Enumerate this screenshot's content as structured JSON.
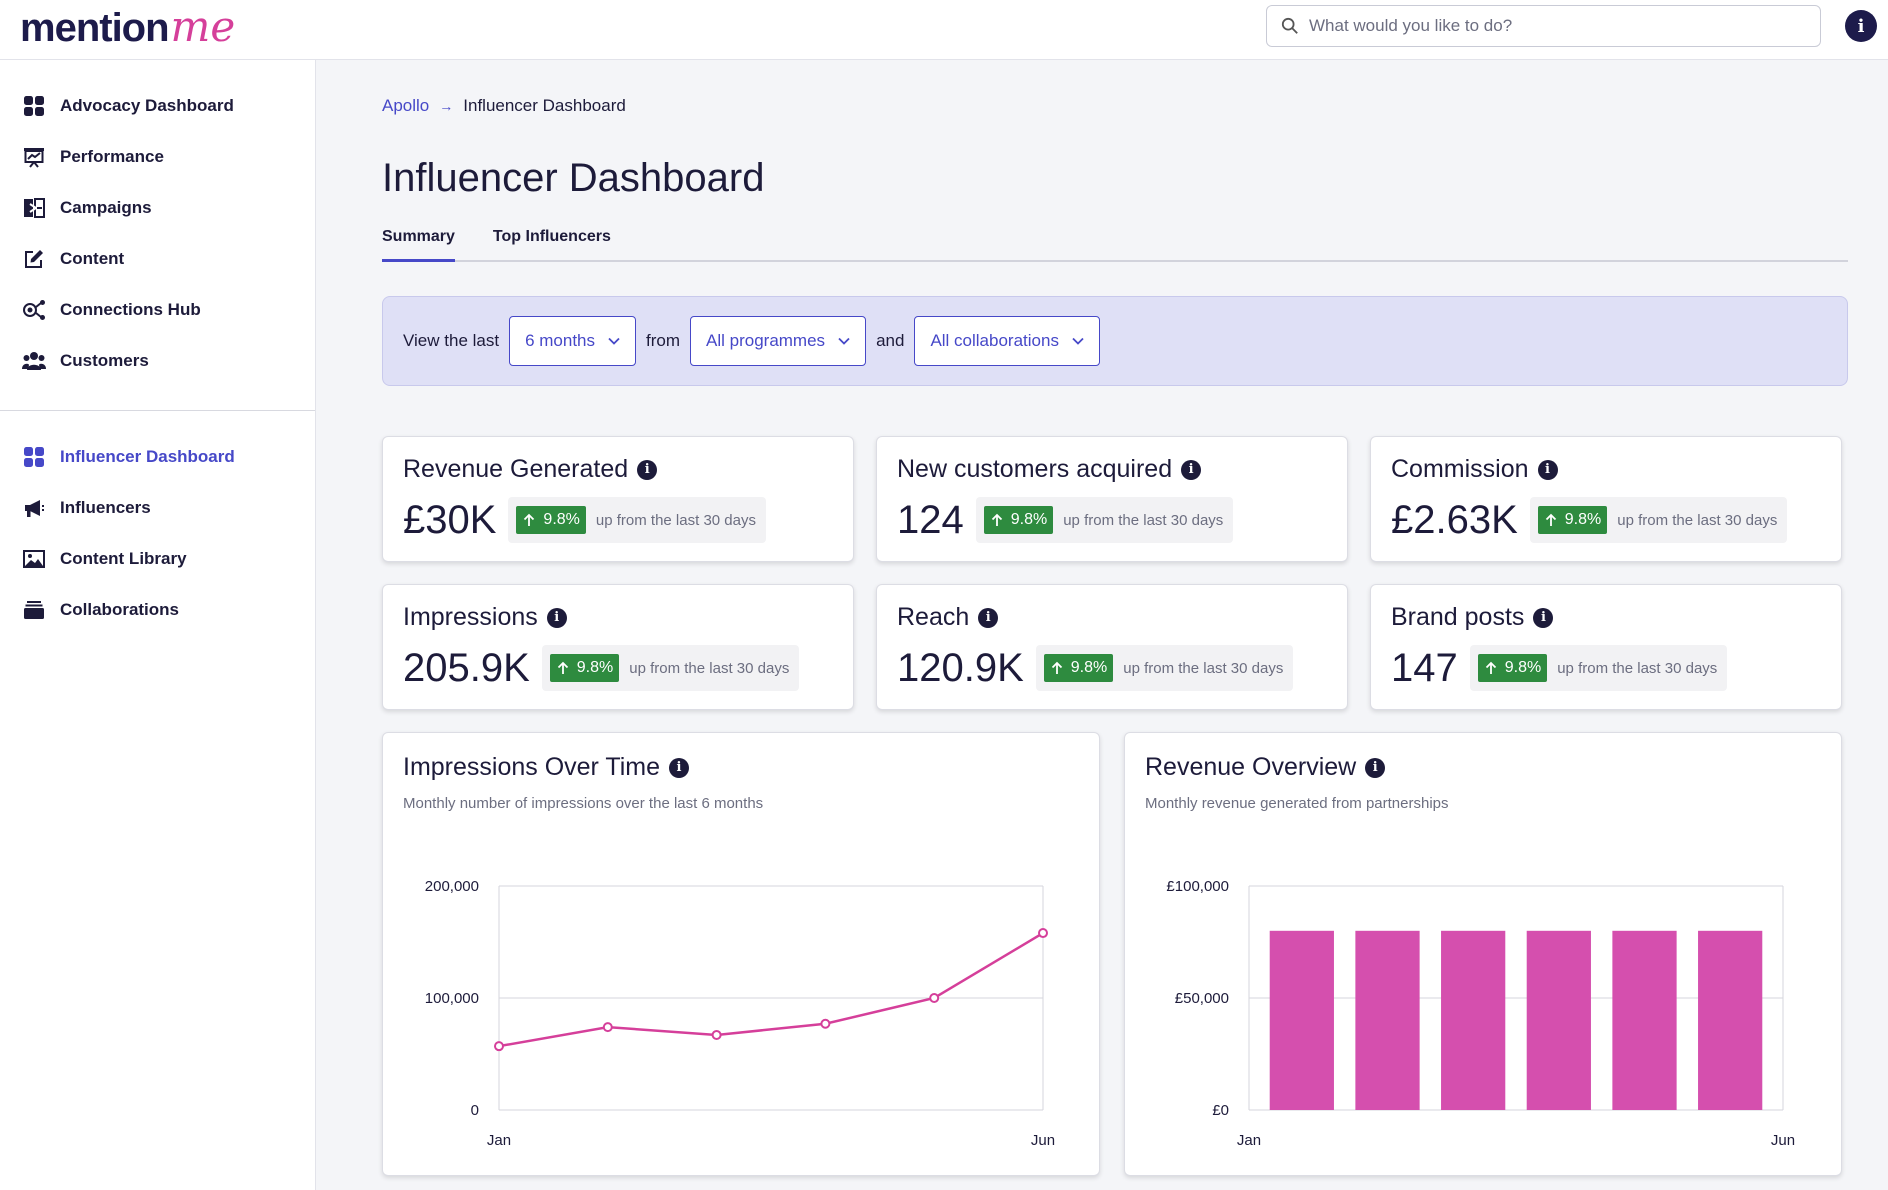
{
  "brand": {
    "part1": "mention",
    "part2": "me"
  },
  "search": {
    "placeholder": "What would you like to do?"
  },
  "sidebar": {
    "group1": [
      {
        "name": "advocacy-dashboard",
        "label": "Advocacy Dashboard",
        "icon": "grid-icon"
      },
      {
        "name": "performance",
        "label": "Performance",
        "icon": "presentation-chart-icon"
      },
      {
        "name": "campaigns",
        "label": "Campaigns",
        "icon": "campaigns-icon"
      },
      {
        "name": "content",
        "label": "Content",
        "icon": "edit-icon"
      },
      {
        "name": "connections-hub",
        "label": "Connections Hub",
        "icon": "connections-icon"
      },
      {
        "name": "customers",
        "label": "Customers",
        "icon": "users-icon"
      }
    ],
    "group2": [
      {
        "name": "influencer-dashboard",
        "label": "Influencer Dashboard",
        "icon": "grid-icon",
        "active": true
      },
      {
        "name": "influencers",
        "label": "Influencers",
        "icon": "megaphone-icon"
      },
      {
        "name": "content-library",
        "label": "Content Library",
        "icon": "image-icon"
      },
      {
        "name": "collaborations",
        "label": "Collaborations",
        "icon": "stack-icon"
      }
    ]
  },
  "breadcrumb": {
    "parent": "Apollo",
    "current": "Influencer Dashboard"
  },
  "page": {
    "title": "Influencer Dashboard"
  },
  "tabs": [
    {
      "label": "Summary",
      "active": true
    },
    {
      "label": "Top Influencers",
      "active": false
    }
  ],
  "filters": {
    "text_view": "View the last",
    "period": "6 months",
    "text_from": "from",
    "programme": "All programmes",
    "text_and": "and",
    "collaboration": "All collaborations"
  },
  "kpis": [
    {
      "title": "Revenue Generated",
      "value": "£30K",
      "change": "9.8%",
      "note": "up from the last 30 days"
    },
    {
      "title": "New customers acquired",
      "value": "124",
      "change": "9.8%",
      "note": "up from the last 30 days"
    },
    {
      "title": "Commission",
      "value": "£2.63K",
      "change": "9.8%",
      "note": "up from the last 30 days"
    },
    {
      "title": "Impressions",
      "value": "205.9K",
      "change": "9.8%",
      "note": "up from the last 30 days"
    },
    {
      "title": "Reach",
      "value": "120.9K",
      "change": "9.8%",
      "note": "up from the last 30 days"
    },
    {
      "title": "Brand posts",
      "value": "147",
      "change": "9.8%",
      "note": "up from the last 30 days"
    }
  ],
  "colors": {
    "accent": "#4648c8",
    "positive": "#2e8b3f",
    "series": "#d53f9a",
    "bar": "#d54fae"
  },
  "chart_data": [
    {
      "type": "line",
      "title": "Impressions Over Time",
      "subtitle": "Monthly number of impressions over the last 6 months",
      "x": [
        "Jan",
        "",
        "",
        "",
        "",
        "Jun"
      ],
      "x_tick_labels": [
        "Jan",
        "Jun"
      ],
      "values": [
        57000,
        74000,
        67000,
        77000,
        100000,
        158000
      ],
      "ylim": [
        0,
        200000
      ],
      "y_ticks": [
        0,
        100000,
        200000
      ],
      "y_tick_labels": [
        "0",
        "100,000",
        "200,000"
      ],
      "grid": true,
      "xlabel": "",
      "ylabel": ""
    },
    {
      "type": "bar",
      "title": "Revenue Overview",
      "subtitle": "Monthly revenue generated from partnerships",
      "categories": [
        "Jan",
        "",
        "",
        "",
        "",
        "Jun"
      ],
      "x_tick_labels": [
        "Jan",
        "Jun"
      ],
      "values": [
        80000,
        80000,
        80000,
        80000,
        80000,
        80000
      ],
      "ylim": [
        0,
        100000
      ],
      "y_ticks": [
        0,
        50000,
        100000
      ],
      "y_tick_labels": [
        "£0",
        "£50,000",
        "£100,000"
      ],
      "grid": true,
      "xlabel": "",
      "ylabel": ""
    }
  ]
}
